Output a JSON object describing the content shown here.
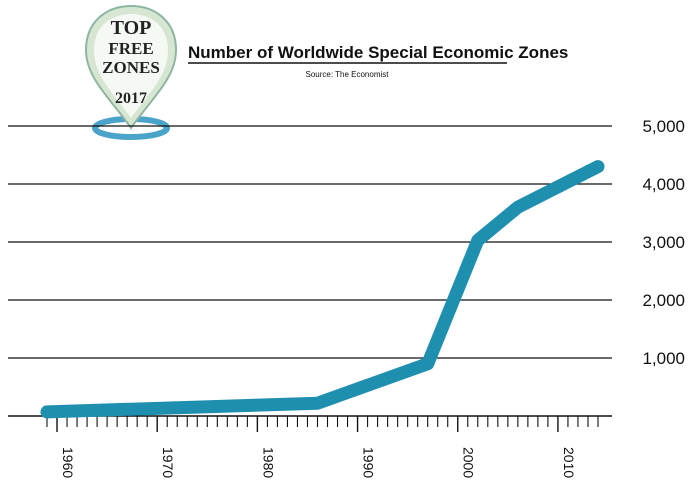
{
  "logo": {
    "line1": "TOP",
    "line2": "FREE",
    "line3": "ZONES",
    "year": "2017"
  },
  "chart_data": {
    "type": "line",
    "title": "Number of Worldwide Special Economic Zones",
    "subtitle": "Source: The Economist",
    "xlabel": "",
    "ylabel": "",
    "x": [
      1959,
      1986,
      1997,
      2002,
      2006,
      2014
    ],
    "y": [
      70,
      220,
      900,
      3030,
      3600,
      4300
    ],
    "xlim": [
      1959,
      2015
    ],
    "ylim": [
      0,
      5000
    ],
    "y_ticks": [
      1000,
      2000,
      3000,
      4000,
      5000
    ],
    "y_tick_labels": [
      "1,000",
      "2,000",
      "3,000",
      "4,000",
      "5,000"
    ],
    "x_ticks": [
      1960,
      1970,
      1980,
      1990,
      2000,
      2010
    ],
    "x_tick_labels": [
      "1960",
      "1970",
      "1980",
      "1990",
      "2000",
      "2010"
    ],
    "grid": true,
    "y_axis_side": "right",
    "line_color": "#1f8fb0"
  }
}
